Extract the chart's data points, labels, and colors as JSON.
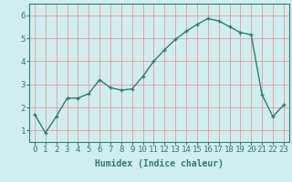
{
  "x": [
    0,
    1,
    2,
    3,
    4,
    5,
    6,
    7,
    8,
    9,
    10,
    11,
    12,
    13,
    14,
    15,
    16,
    17,
    18,
    19,
    20,
    21,
    22,
    23
  ],
  "y": [
    1.7,
    0.9,
    1.6,
    2.4,
    2.4,
    2.6,
    3.2,
    2.85,
    2.75,
    2.8,
    3.35,
    4.0,
    4.5,
    4.95,
    5.3,
    5.6,
    5.85,
    5.75,
    5.5,
    5.25,
    5.15,
    2.55,
    1.6,
    2.1
  ],
  "line_color": "#2e7d6e",
  "marker": "+",
  "marker_size": 3,
  "bg_color": "#d0eeee",
  "grid_color": "#ee8888",
  "xlabel": "Humidex (Indice chaleur)",
  "xlim": [
    -0.5,
    23.5
  ],
  "ylim": [
    0.5,
    6.5
  ],
  "yticks": [
    1,
    2,
    3,
    4,
    5,
    6
  ],
  "xticks": [
    0,
    1,
    2,
    3,
    4,
    5,
    6,
    7,
    8,
    9,
    10,
    11,
    12,
    13,
    14,
    15,
    16,
    17,
    18,
    19,
    20,
    21,
    22,
    23
  ],
  "xlabel_fontsize": 7,
  "tick_fontsize": 6.5,
  "line_width": 1.0
}
